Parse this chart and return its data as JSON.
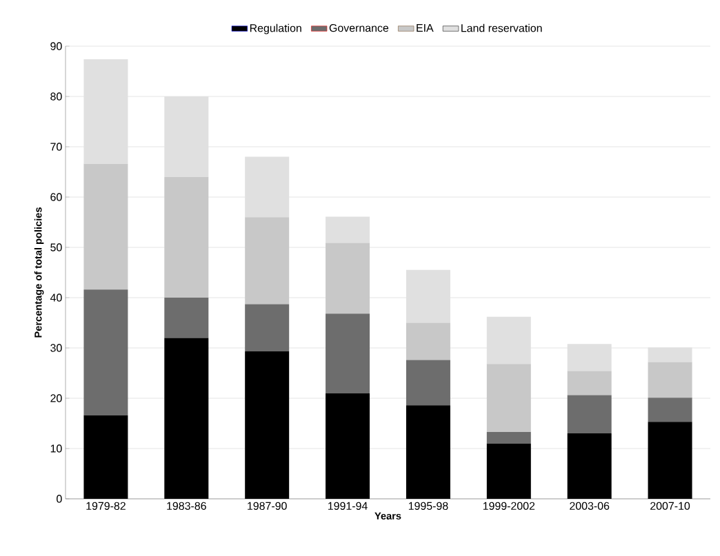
{
  "chart_data": {
    "type": "bar",
    "stacked": true,
    "xlabel": "Years",
    "ylabel": "Percentage of total policies",
    "categories": [
      "1979-82",
      "1983-86",
      "1987-90",
      "1991-94",
      "1995-98",
      "1999-2002",
      "2003-06",
      "2007-10"
    ],
    "series": [
      {
        "name": "Regulation",
        "color": "#000000",
        "values": [
          16.6,
          32,
          29.3,
          21,
          18.6,
          11,
          13,
          15.3
        ]
      },
      {
        "name": "Governance",
        "color": "#6d6d6d",
        "values": [
          25,
          8,
          9.4,
          15.8,
          9,
          2.3,
          7.6,
          4.8
        ]
      },
      {
        "name": "EIA",
        "color": "#c8c8c8",
        "values": [
          25,
          24,
          17.3,
          14.1,
          7.4,
          13.5,
          4.8,
          7.1
        ]
      },
      {
        "name": "Land reservation",
        "color": "#e0e0e0",
        "values": [
          20.8,
          16,
          12,
          5.2,
          10.5,
          9.4,
          5.4,
          2.9
        ]
      }
    ],
    "ylim": [
      0,
      90
    ],
    "yticks": [
      0,
      10,
      20,
      30,
      40,
      50,
      60,
      70,
      80,
      90
    ],
    "grid": "y",
    "legend": "top"
  }
}
